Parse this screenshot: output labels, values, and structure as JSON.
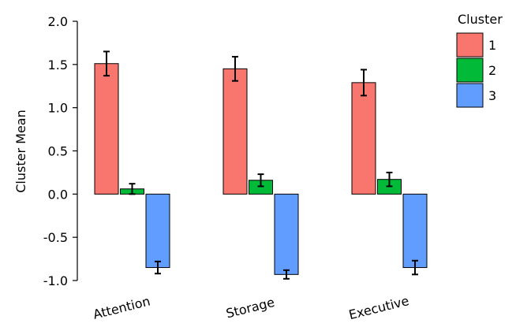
{
  "chart_data": {
    "type": "bar",
    "title": "",
    "xlabel": "",
    "ylabel": "Cluster Mean",
    "ylim": [
      -1.0,
      2.0
    ],
    "yticks": [
      "2.0",
      "1.5",
      "1.0",
      "0.5",
      "0.0",
      "-0.5",
      "-1.0"
    ],
    "ytick_values": [
      2.0,
      1.5,
      1.0,
      0.5,
      0.0,
      -0.5,
      -1.0
    ],
    "categories": [
      "Attention",
      "Storage",
      "Executive"
    ],
    "series": [
      {
        "name": "1",
        "color": "#f8766d",
        "values": [
          1.51,
          1.45,
          1.29
        ],
        "error": [
          0.14,
          0.14,
          0.15
        ]
      },
      {
        "name": "2",
        "color": "#00ba38",
        "values": [
          0.06,
          0.16,
          0.17
        ],
        "error": [
          0.06,
          0.07,
          0.08
        ]
      },
      {
        "name": "3",
        "color": "#619cff",
        "values": [
          -0.85,
          -0.93,
          -0.85
        ],
        "error": [
          0.07,
          0.05,
          0.08
        ]
      }
    ],
    "legend": {
      "title": "Cluster",
      "position": "top-right"
    },
    "grid": false
  }
}
